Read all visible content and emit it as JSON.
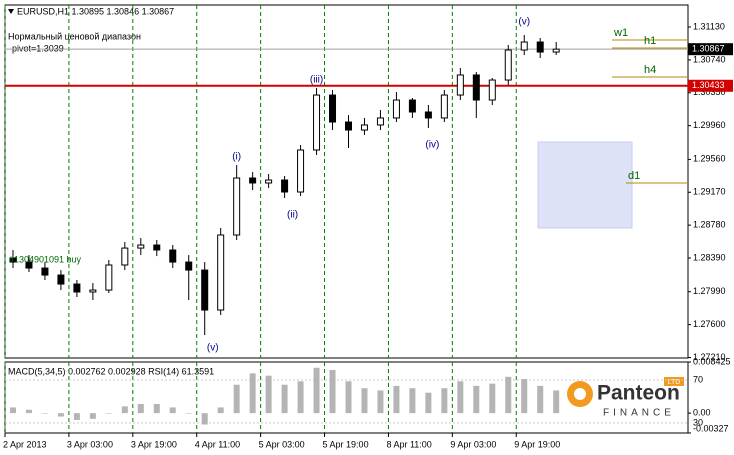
{
  "chart_data": [
    {
      "type": "candlestick",
      "title": "EURUSD,H1  1.30895 1.30846 1.30867",
      "subtitle": [
        "Нормальный ценовой диапазон",
        "pivot=1.3039"
      ],
      "x": [
        2,
        6,
        10,
        14,
        18,
        22,
        26,
        30,
        34,
        38,
        42,
        46,
        50,
        54,
        58,
        62,
        66,
        70,
        74,
        78,
        82,
        86,
        90,
        94,
        98,
        102,
        106,
        110,
        114,
        118,
        122,
        126,
        130,
        134,
        138
      ],
      "open": [
        1.2839,
        1.28342,
        1.28271,
        1.28188,
        1.28081,
        1.27987,
        1.2801,
        1.28307,
        1.28508,
        1.28544,
        1.28485,
        1.28342,
        1.28247,
        1.27773,
        1.28663,
        1.29339,
        1.2928,
        1.29315,
        1.29173,
        1.29671,
        1.30323,
        1.30003,
        1.29908,
        1.29968,
        1.30051,
        1.30264,
        1.30122,
        1.30051,
        1.30323,
        1.30561,
        1.30264,
        1.30501,
        1.30857,
        1.30952,
        1.30833
      ],
      "high": [
        1.28485,
        1.28425,
        1.28342,
        1.28247,
        1.28129,
        1.28093,
        1.28366,
        1.2858,
        1.28627,
        1.28603,
        1.28544,
        1.28425,
        1.28342,
        1.28746,
        1.29493,
        1.2941,
        1.29386,
        1.29363,
        1.2973,
        1.30406,
        1.30383,
        1.30086,
        1.30051,
        1.30145,
        1.30359,
        1.30288,
        1.30205,
        1.30383,
        1.30644,
        1.30596,
        1.30525,
        1.30917,
        1.31035,
        1.31,
        1.30952
      ],
      "low": [
        1.28271,
        1.28224,
        1.28129,
        1.2801,
        1.27927,
        1.27892,
        1.27975,
        1.28247,
        1.28425,
        1.28413,
        1.28271,
        1.27892,
        1.27476,
        1.27714,
        1.28603,
        1.29196,
        1.2922,
        1.29102,
        1.29125,
        1.29612,
        1.29908,
        1.29695,
        1.29849,
        1.29908,
        1.30003,
        1.30051,
        1.29932,
        1.30003,
        1.30264,
        1.30051,
        1.30205,
        1.30442,
        1.30798,
        1.30762,
        1.30798
      ],
      "close": [
        1.28342,
        1.28271,
        1.28188,
        1.28081,
        1.27987,
        1.2801,
        1.28307,
        1.28508,
        1.28544,
        1.28485,
        1.28342,
        1.28247,
        1.27773,
        1.28663,
        1.29339,
        1.2928,
        1.29315,
        1.29173,
        1.29671,
        1.30323,
        1.30003,
        1.29908,
        1.29968,
        1.30051,
        1.30264,
        1.30122,
        1.30051,
        1.30323,
        1.30561,
        1.30264,
        1.30501,
        1.30857,
        1.30952,
        1.30833,
        1.30867
      ],
      "xlim": [
        0,
        171
      ],
      "ylim": [
        1.27204,
        1.31391
      ],
      "xticks": [
        {
          "value": 0,
          "label": "2 Apr 2013"
        },
        {
          "value": 16,
          "label": "3 Apr 03:00"
        },
        {
          "value": 32,
          "label": "3 Apr 19:00"
        },
        {
          "value": 48,
          "label": "4 Apr 11:00"
        },
        {
          "value": 64,
          "label": "5 Apr 03:00"
        },
        {
          "value": 80,
          "label": "5 Apr 19:00"
        },
        {
          "value": 96,
          "label": "8 Apr 11:00"
        },
        {
          "value": 112,
          "label": "9 Apr 03:00"
        },
        {
          "value": 128,
          "label": "9 Apr 19:00"
        }
      ],
      "yticks": [
        {
          "value": 1.3113,
          "label": "1.31130"
        },
        {
          "value": 1.3074,
          "label": "1.30740"
        },
        {
          "value": 1.3035,
          "label": "1.30350"
        },
        {
          "value": 1.2996,
          "label": "1.29960"
        },
        {
          "value": 1.2956,
          "label": "1.29560"
        },
        {
          "value": 1.2917,
          "label": "1.29170"
        },
        {
          "value": 1.2878,
          "label": "1.28780"
        },
        {
          "value": 1.2839,
          "label": "1.28390"
        },
        {
          "value": 1.2799,
          "label": "1.27990"
        },
        {
          "value": 1.276,
          "label": "1.27600"
        },
        {
          "value": 1.2721,
          "label": "1.27210"
        }
      ],
      "grid": true,
      "price_tags": [
        {
          "value": 1.30867,
          "label": "1.30867",
          "color": "#000000",
          "line_color": "#a0a0a0"
        },
        {
          "value": 1.30433,
          "label": "1.30433",
          "color": "#d40000",
          "line_color": "#d40000"
        }
      ],
      "levels": [
        {
          "name": "w1",
          "value": 1.30976
        },
        {
          "name": "h1",
          "value": 1.30881
        },
        {
          "name": "h4",
          "value": 1.30537
        },
        {
          "name": "d1",
          "value": 1.2928
        }
      ],
      "range_box": [
        1.28746,
        1.29766
      ],
      "annotations": [
        {
          "text": "(v)",
          "x": 130,
          "y": 1.31189
        },
        {
          "text": "(iii)",
          "x": 78,
          "y": 1.30501
        },
        {
          "text": "(i)",
          "x": 58,
          "y": 1.29588
        },
        {
          "text": "(ii)",
          "x": 72,
          "y": 1.289
        },
        {
          "text": "(iv)",
          "x": 107,
          "y": 1.2973
        },
        {
          "text": "(v)",
          "x": 52,
          "y": 1.27322
        },
        {
          "text": "#1304901091 buy",
          "x": 1,
          "y": 1.28366,
          "anchor": "start"
        }
      ]
    },
    {
      "type": "bar",
      "title": "MACD(5,34,5) 0.002762 0.002928 RSI(14) 61.3591",
      "x": [
        2,
        6,
        10,
        14,
        18,
        22,
        26,
        30,
        34,
        38,
        42,
        46,
        50,
        54,
        58,
        62,
        66,
        70,
        74,
        78,
        82,
        86,
        90,
        94,
        98,
        102,
        106,
        110,
        114,
        118,
        122,
        126,
        130,
        134,
        138
      ],
      "values": [
        0.00094,
        0.00056,
        0,
        -0.00056,
        -0.00112,
        -0.00094,
        0,
        0.00112,
        0.0015,
        0.0015,
        0.00094,
        0,
        -0.00187,
        0.00094,
        0.00468,
        0.00655,
        0.00617,
        0.00468,
        0.00524,
        0.00748,
        0.00711,
        0.00524,
        0.00411,
        0.00374,
        0.00449,
        0.00411,
        0.00337,
        0.00411,
        0.00524,
        0.00449,
        0.00486,
        0.00598,
        0.00561,
        0.00449,
        0.00374
      ],
      "color": "#b4b4b4",
      "xlim": [
        0,
        171
      ],
      "ylim": [
        -0.00327,
        0.008425
      ],
      "yticks": [
        0.008425,
        {
          "value": 0,
          "label": "0.00"
        },
        -0.00327
      ],
      "y2lim": [
        20.7,
        86.7
      ],
      "y2ticks": [
        70,
        30
      ]
    }
  ],
  "logo": {
    "name": "Panteon",
    "sub": "FINANCE",
    "badge": "LTD"
  }
}
